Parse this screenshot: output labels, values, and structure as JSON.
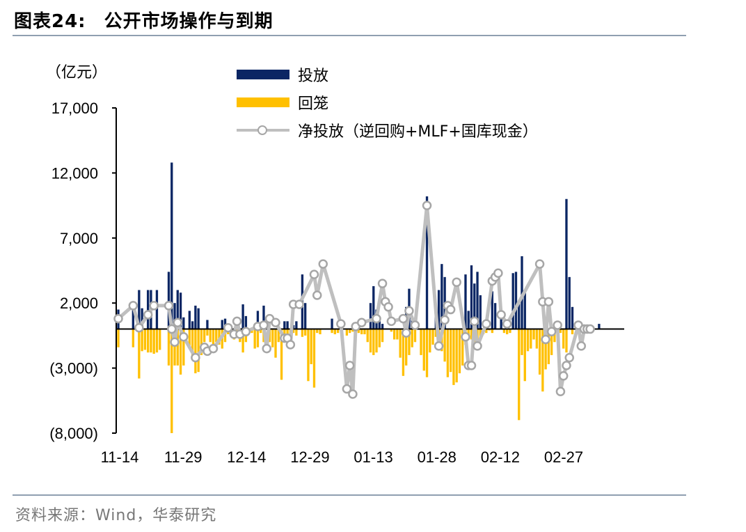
{
  "figure": {
    "label": "图表24:",
    "title": "公开市场操作与到期",
    "source": "资料来源：Wind，华泰研究"
  },
  "chart_data": {
    "type": "bar",
    "unit": "（亿元）",
    "ylim": [
      -8000,
      17000
    ],
    "yticks": [
      17000,
      12000,
      7000,
      2000,
      -3000,
      -8000
    ],
    "ytick_labels": [
      "17,000",
      "12,000",
      "7,000",
      "2,000",
      "(3,000)",
      "(8,000)"
    ],
    "xtick_labels": [
      "11-14",
      "11-29",
      "12-14",
      "12-29",
      "01-13",
      "01-28",
      "02-12",
      "02-27"
    ],
    "legend_position": "top",
    "colors": {
      "injection": "#0b2664",
      "withdrawal": "#ffc000",
      "net": "#bfbfbf",
      "marker": "#a6a6a6"
    },
    "series": [
      {
        "name": "投放",
        "type": "bar",
        "values": [
          1500,
          0,
          0,
          0,
          0,
          2000,
          0,
          3000,
          1600,
          0,
          3000,
          3000,
          0,
          3000,
          0,
          0,
          0,
          4400,
          12800,
          2000,
          3000,
          2800,
          900,
          0,
          1400,
          600,
          1800,
          1600,
          0,
          0,
          700,
          0,
          0,
          0,
          0,
          700,
          800,
          0,
          0,
          0,
          0,
          0,
          1900,
          1000,
          0,
          0,
          300,
          1400,
          0,
          1800,
          0,
          0,
          0,
          0,
          0,
          0,
          600,
          600,
          0,
          300,
          600,
          0,
          4200,
          2000,
          0,
          0,
          0,
          0,
          0,
          0,
          0,
          0,
          800,
          0,
          0,
          0,
          0,
          0,
          0,
          0,
          0,
          0,
          0,
          0,
          0,
          2000,
          3300,
          1500,
          600,
          400,
          0,
          0,
          0,
          0,
          0,
          0,
          0,
          1700,
          3100,
          1000,
          0,
          0,
          0,
          0,
          10200,
          0,
          0,
          1400,
          3000,
          5000,
          4000,
          0,
          0,
          0,
          0,
          0,
          0,
          4200,
          1400,
          4900,
          3500,
          4400,
          2600,
          0,
          0,
          0,
          2900,
          2000,
          0,
          1600,
          0,
          0,
          0,
          4300,
          4400,
          2200,
          5600,
          3000,
          0,
          0,
          0,
          0,
          0,
          0,
          0,
          0,
          0,
          0,
          0,
          0,
          0,
          10000,
          4000,
          1700,
          0,
          300,
          0,
          0,
          0,
          0,
          0,
          0,
          400,
          0,
          0,
          0,
          0,
          0,
          0,
          0,
          0
        ],
        "note": "approximate daily values read from chart"
      },
      {
        "name": "回笼",
        "type": "bar",
        "values": [
          -1400,
          0,
          0,
          0,
          0,
          -1400,
          0,
          -3800,
          -1700,
          -1600,
          -1800,
          -1800,
          -1900,
          -1800,
          -1600,
          0,
          0,
          -2800,
          -8000,
          -2800,
          -2800,
          -3500,
          -2800,
          0,
          -1500,
          -2200,
          -3400,
          -3300,
          -2000,
          -1000,
          -500,
          -1000,
          -1500,
          -1000,
          -1200,
          -1500,
          -1000,
          -400,
          0,
          -800,
          -400,
          -1000,
          -1800,
          -1000,
          0,
          -300,
          -1500,
          -1400,
          -300,
          -1000,
          0,
          -1000,
          -1400,
          -2200,
          -1000,
          -3900,
          -800,
          -800,
          -500,
          -300,
          -500,
          0,
          -600,
          -500,
          -4000,
          -2700,
          -4500,
          -300,
          -400,
          0,
          0,
          0,
          -300,
          -400,
          -300,
          0,
          0,
          -500,
          -300,
          -200,
          -200,
          -300,
          -400,
          -400,
          -1000,
          -1800,
          -2000,
          -1800,
          -1400,
          -1000,
          0,
          0,
          -200,
          -800,
          -800,
          -2200,
          -3600,
          -2800,
          -2000,
          -1400,
          -1000,
          0,
          -2000,
          -3200,
          -3700,
          -1800,
          -1200,
          -600,
          -600,
          -1700,
          -2500,
          -3700,
          -3300,
          -4300,
          -4100,
          -3400,
          -2800,
          -1200,
          -800,
          -800,
          -1400,
          -1200,
          -800,
          -400,
          -300,
          -100,
          -300,
          0,
          0,
          0,
          -300,
          -400,
          -300,
          0,
          0,
          -7000,
          -2000,
          -4000,
          -1700,
          -1500,
          -800,
          -1500,
          -3500,
          -4800,
          -3100,
          -2700,
          -2000,
          -1000,
          -500,
          -300,
          -1500,
          -1800,
          0,
          -400,
          0,
          0,
          0,
          0,
          0,
          0,
          0,
          0,
          0,
          0,
          0,
          0,
          0
        ],
        "note": "approximate daily values read from chart"
      },
      {
        "name": "净投放（逆回购+MLF+国库现金）",
        "type": "line",
        "points": [
          {
            "x": 0,
            "y": 800
          },
          {
            "x": 5,
            "y": 1800
          },
          {
            "x": 7,
            "y": 100
          },
          {
            "x": 10,
            "y": 1100
          },
          {
            "x": 12,
            "y": 1800
          },
          {
            "x": 17,
            "y": 1800
          },
          {
            "x": 18,
            "y": 0
          },
          {
            "x": 19,
            "y": -1000
          },
          {
            "x": 20,
            "y": 500
          },
          {
            "x": 22,
            "y": -600
          },
          {
            "x": 26,
            "y": -2200
          },
          {
            "x": 29,
            "y": -1400
          },
          {
            "x": 30,
            "y": -1700
          },
          {
            "x": 32,
            "y": -1500
          },
          {
            "x": 37,
            "y": 100
          },
          {
            "x": 39,
            "y": -400
          },
          {
            "x": 40,
            "y": 600
          },
          {
            "x": 41,
            "y": -400
          },
          {
            "x": 43,
            "y": -200
          },
          {
            "x": 47,
            "y": 200
          },
          {
            "x": 49,
            "y": 300
          },
          {
            "x": 50,
            "y": -1500
          },
          {
            "x": 51,
            "y": 800
          },
          {
            "x": 53,
            "y": 500
          },
          {
            "x": 56,
            "y": -700
          },
          {
            "x": 57,
            "y": -700
          },
          {
            "x": 58,
            "y": -1200
          },
          {
            "x": 59,
            "y": 1900
          },
          {
            "x": 61,
            "y": 1900
          },
          {
            "x": 66,
            "y": 4200
          },
          {
            "x": 67,
            "y": 2600
          },
          {
            "x": 69,
            "y": 5000
          },
          {
            "x": 75,
            "y": 400
          },
          {
            "x": 77,
            "y": -4600
          },
          {
            "x": 78,
            "y": -2800
          },
          {
            "x": 79,
            "y": -5000
          },
          {
            "x": 80,
            "y": 200
          },
          {
            "x": 82,
            "y": 500
          },
          {
            "x": 87,
            "y": 800
          },
          {
            "x": 89,
            "y": 3500
          },
          {
            "x": 90,
            "y": 2100
          },
          {
            "x": 91,
            "y": 1700
          },
          {
            "x": 92,
            "y": 600
          },
          {
            "x": 96,
            "y": 800
          },
          {
            "x": 97,
            "y": -300
          },
          {
            "x": 98,
            "y": 1400
          },
          {
            "x": 100,
            "y": 300
          },
          {
            "x": 104,
            "y": 9500
          },
          {
            "x": 108,
            "y": -1300
          },
          {
            "x": 110,
            "y": 700
          },
          {
            "x": 111,
            "y": 1800
          },
          {
            "x": 112,
            "y": 1500
          },
          {
            "x": 114,
            "y": 3600
          },
          {
            "x": 117,
            "y": -600
          },
          {
            "x": 118,
            "y": -2800
          },
          {
            "x": 119,
            "y": -2800
          },
          {
            "x": 120,
            "y": 600
          },
          {
            "x": 121,
            "y": -1300
          },
          {
            "x": 124,
            "y": 400
          },
          {
            "x": 126,
            "y": 3700
          },
          {
            "x": 127,
            "y": 4000
          },
          {
            "x": 128,
            "y": 4300
          },
          {
            "x": 129,
            "y": 1100
          },
          {
            "x": 131,
            "y": 400
          },
          {
            "x": 142,
            "y": 5000
          },
          {
            "x": 143,
            "y": 2100
          },
          {
            "x": 144,
            "y": -800
          },
          {
            "x": 145,
            "y": 2100
          },
          {
            "x": 146,
            "y": -200
          },
          {
            "x": 148,
            "y": 300
          },
          {
            "x": 149,
            "y": -4800
          },
          {
            "x": 150,
            "y": -3600
          },
          {
            "x": 151,
            "y": -2800
          },
          {
            "x": 152,
            "y": -2200
          },
          {
            "x": 155,
            "y": 300
          },
          {
            "x": 156,
            "y": -1300
          },
          {
            "x": 157,
            "y": 0
          },
          {
            "x": 158,
            "y": 0
          },
          {
            "x": 159,
            "y": 0
          }
        ],
        "note": "approximate values read from chart"
      }
    ]
  }
}
